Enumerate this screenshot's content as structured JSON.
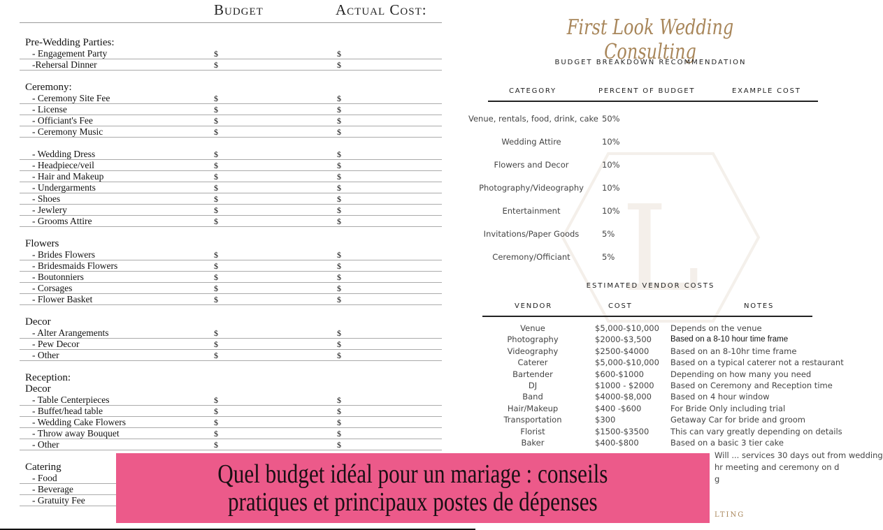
{
  "left_sheet": {
    "col_budget": "Budget",
    "col_actual": "Actual Cost:",
    "currency": "$",
    "sections": [
      {
        "title": "Pre-Wedding Parties:",
        "items": [
          "- Engagement Party",
          "-Rehersal Dinner"
        ]
      },
      {
        "title": "Ceremony:",
        "items": [
          "- Ceremony Site Fee",
          "- License",
          "- Officiant's Fee",
          "- Ceremony Music"
        ]
      },
      {
        "title": "",
        "items": [
          "- Wedding Dress",
          "- Headpiece/veil",
          "- Hair and Makeup",
          "- Undergarments",
          "- Shoes",
          "- Jewlery",
          "- Grooms Attire"
        ]
      },
      {
        "title": "Flowers",
        "items": [
          "- Brides Flowers",
          "- Bridesmaids Flowers",
          "- Boutonniers",
          "- Corsages",
          "- Flower Basket"
        ]
      },
      {
        "title": "Decor",
        "items": [
          "- Alter Arangements",
          "- Pew Decor",
          "- Other"
        ]
      },
      {
        "title": "Reception:",
        "subtitle": "Decor",
        "items": [
          "- Table Centerpieces",
          "- Buffet/head table",
          "- Wedding Cake Flowers",
          "- Throw away Bouquet",
          "- Other"
        ]
      },
      {
        "title": "Catering",
        "items": [
          "- Food",
          "- Beverage",
          "- Gratuity Fee"
        ]
      }
    ]
  },
  "right_sheet": {
    "logo": "First Look Wedding Consulting",
    "subtitle": "BUDGET BREAKDOWN RECOMMENDATION",
    "headers": [
      "CATEGORY",
      "PERCENT OF BUDGET",
      "EXAMPLE COST"
    ],
    "categories": [
      {
        "name": "Venue, rentals, food, drink, cake",
        "percent": "50%"
      },
      {
        "name": "Wedding Attire",
        "percent": "10%"
      },
      {
        "name": "Flowers and Decor",
        "percent": "10%"
      },
      {
        "name": "Photography/Videography",
        "percent": "10%"
      },
      {
        "name": "Entertainment",
        "percent": "10%"
      },
      {
        "name": "Invitations/Paper Goods",
        "percent": "5%"
      },
      {
        "name": "Ceremony/Officiant",
        "percent": "5%"
      }
    ],
    "vendor_title": "ESTIMATED VENDOR COSTS",
    "vendor_headers": [
      "VENDOR",
      "COST",
      "NOTES"
    ],
    "vendors": [
      {
        "vendor": "Venue",
        "cost": "$5,000-$10,000",
        "notes": "Depends on the venue"
      },
      {
        "vendor": "Photography",
        "cost": "$2000-$3,500",
        "notes": "Based on a 8-10 hour time frame"
      },
      {
        "vendor": "Videography",
        "cost": "$2500-$4000",
        "notes": "Based on an 8-10hr time frame"
      },
      {
        "vendor": "Caterer",
        "cost": "$5,000-$10,000",
        "notes": "Based on a typical caterer not a restaurant"
      },
      {
        "vendor": "Bartender",
        "cost": "$600-$1000",
        "notes": "Depending on how many you need"
      },
      {
        "vendor": "DJ",
        "cost": "$1000 - $2000",
        "notes": "Based on Ceremony and Reception time"
      },
      {
        "vendor": "Band",
        "cost": "$4000-$8,000",
        "notes": "Based on 4 hour window"
      },
      {
        "vendor": "Hair/Makeup",
        "cost": "$400 -$600",
        "notes": "For Bride Only including trial"
      },
      {
        "vendor": "Transportation",
        "cost": "$300",
        "notes": "Getaway Car for bride and groom"
      },
      {
        "vendor": "Florist",
        "cost": "$1500-$3500",
        "notes": "This can vary greatly depending on details"
      },
      {
        "vendor": "Baker",
        "cost": "$400-$800",
        "notes": "Based on a basic 3 tier cake"
      }
    ],
    "partial_notes": [
      "Will ... services 30 days out from wedding",
      "hr meeting and ceremony on d",
      "g"
    ],
    "footer": "LTING"
  },
  "banner": {
    "line1": "Quel budget idéal pour un mariage : conseils",
    "line2": "pratiques et principaux postes de dépenses",
    "color": "#ec5a8a"
  }
}
